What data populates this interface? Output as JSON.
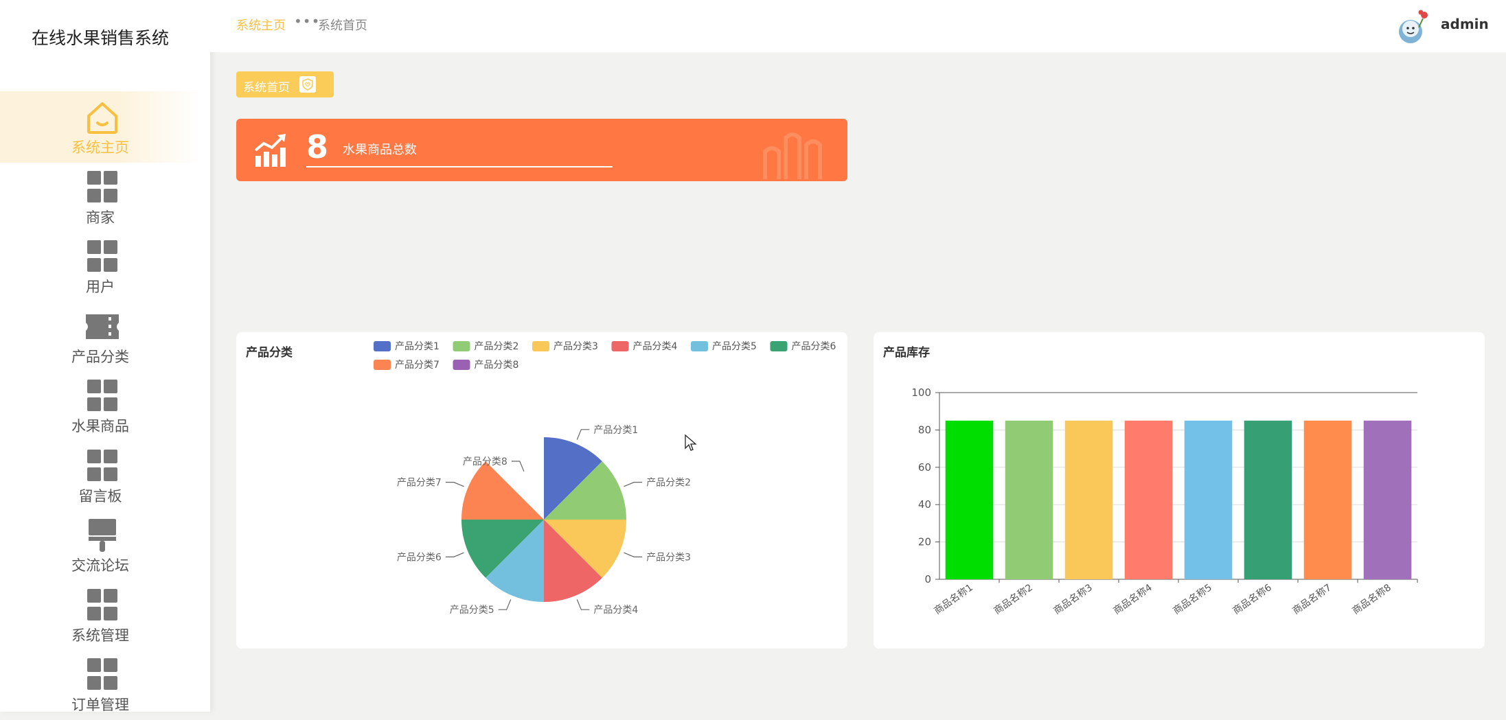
{
  "app": {
    "title": "在线水果销售系统"
  },
  "sidebar": {
    "items": [
      {
        "label": "系统主页",
        "icon": "home-icon",
        "active": true
      },
      {
        "label": "商家",
        "icon": "grid-icon"
      },
      {
        "label": "用户",
        "icon": "grid-icon"
      },
      {
        "label": "产品分类",
        "icon": "ticket-icon"
      },
      {
        "label": "水果商品",
        "icon": "grid-icon"
      },
      {
        "label": "留言板",
        "icon": "grid-icon"
      },
      {
        "label": "交流论坛",
        "icon": "brush-icon"
      },
      {
        "label": "系统管理",
        "icon": "grid-icon"
      },
      {
        "label": "订单管理",
        "icon": "grid-icon"
      }
    ]
  },
  "header": {
    "breadcrumb_home": "系统主页",
    "breadcrumb_separator": "•••",
    "breadcrumb_page": "系统首页",
    "username": "admin",
    "avatar_icon": "avatar-icon"
  },
  "page_tag": {
    "label": "系统首页",
    "icon": "heart-shield-icon"
  },
  "stat_card": {
    "value": "8",
    "label": "水果商品总数",
    "icon": "trend-chart-icon",
    "color": "#ff7843"
  },
  "colors": {
    "accent": "#f6c042",
    "tag": "#fbcd58",
    "stat": "#ff7843"
  },
  "chart_data": [
    {
      "type": "pie",
      "title": "产品分类",
      "legend_position": "top",
      "categories": [
        "产品分类1",
        "产品分类2",
        "产品分类3",
        "产品分类4",
        "产品分类5",
        "产品分类6",
        "产品分类7",
        "产品分类8"
      ],
      "values": [
        1,
        1,
        1,
        1,
        1,
        1,
        1,
        0
      ],
      "colors": [
        "#5470c6",
        "#91cc75",
        "#fac858",
        "#ee6666",
        "#73c0de",
        "#3ba272",
        "#fc8452",
        "#9a60b4"
      ]
    },
    {
      "type": "bar",
      "title": "产品库存",
      "categories": [
        "商品名称1",
        "商品名称2",
        "商品名称3",
        "商品名称4",
        "商品名称5",
        "商品名称6",
        "商品名称7",
        "商品名称8"
      ],
      "values": [
        85,
        85,
        85,
        85,
        85,
        85,
        85,
        85
      ],
      "ylim": [
        0,
        100
      ],
      "yticks": [
        "0",
        "20",
        "40",
        "60",
        "80",
        "100"
      ],
      "grid": true,
      "colors": [
        "#00de00",
        "#91cc75",
        "#fac858",
        "#ff7b6b",
        "#73c0e8",
        "#369f74",
        "#ff8c4c",
        "#a071ba"
      ]
    }
  ]
}
